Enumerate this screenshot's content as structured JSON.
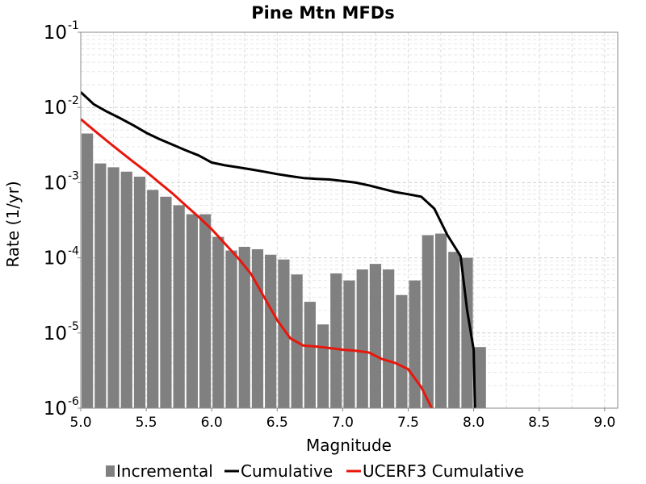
{
  "chart_data": {
    "type": "bar",
    "title": "Pine Mtn MFDs",
    "xlabel": "Magnitude",
    "ylabel": "Rate (1/yr)",
    "xlim": [
      5.0,
      9.1
    ],
    "ylim": [
      1e-06,
      0.1
    ],
    "yscale": "log",
    "grid": true,
    "legend_position": "bottom",
    "x_ticks": [
      "5.0",
      "5.5",
      "6.0",
      "6.5",
      "7.0",
      "7.5",
      "8.0",
      "8.5",
      "9.0"
    ],
    "y_ticks": [
      {
        "base": "10",
        "exp": "-6"
      },
      {
        "base": "10",
        "exp": "-5"
      },
      {
        "base": "10",
        "exp": "-4"
      },
      {
        "base": "10",
        "exp": "-3"
      },
      {
        "base": "10",
        "exp": "-2"
      },
      {
        "base": "10",
        "exp": "-1"
      }
    ],
    "series": [
      {
        "name": "Incremental",
        "kind": "bar",
        "color": "#808080",
        "bin_width": 0.1,
        "x": [
          5.05,
          5.15,
          5.25,
          5.35,
          5.45,
          5.55,
          5.65,
          5.75,
          5.85,
          5.95,
          6.05,
          6.15,
          6.25,
          6.35,
          6.45,
          6.55,
          6.65,
          6.75,
          6.85,
          6.95,
          7.05,
          7.15,
          7.25,
          7.35,
          7.45,
          7.55,
          7.65,
          7.75,
          7.85,
          7.95,
          8.05
        ],
        "values": [
          0.0045,
          0.0018,
          0.0016,
          0.0014,
          0.0012,
          0.0008,
          0.00065,
          0.0005,
          0.00038,
          0.00038,
          0.00019,
          0.000125,
          0.00014,
          0.00013,
          0.00011,
          9.5e-05,
          6e-05,
          2.6e-05,
          1.3e-05,
          6.2e-05,
          5e-05,
          7e-05,
          8.3e-05,
          7e-05,
          3.2e-05,
          5e-05,
          0.0002,
          0.00021,
          0.00012,
          0.0001,
          6.5e-06
        ]
      },
      {
        "name": "Cumulative",
        "kind": "line",
        "color": "#000000",
        "x": [
          5.0,
          5.1,
          5.2,
          5.3,
          5.4,
          5.5,
          5.6,
          5.7,
          5.8,
          5.9,
          6.0,
          6.1,
          6.2,
          6.3,
          6.4,
          6.5,
          6.6,
          6.7,
          6.8,
          6.9,
          7.0,
          7.1,
          7.2,
          7.3,
          7.4,
          7.5,
          7.6,
          7.7,
          7.8,
          7.9,
          7.95,
          8.0,
          8.01
        ],
        "values": [
          0.016,
          0.011,
          0.0088,
          0.0072,
          0.0058,
          0.0046,
          0.0038,
          0.0032,
          0.0027,
          0.0023,
          0.00185,
          0.0017,
          0.0016,
          0.0015,
          0.0014,
          0.0013,
          0.00122,
          0.00115,
          0.00112,
          0.0011,
          0.00105,
          0.001,
          0.00092,
          0.00083,
          0.00075,
          0.0007,
          0.00065,
          0.00045,
          0.0002,
          0.000105,
          2e-05,
          6e-06,
          1e-06
        ]
      },
      {
        "name": "UCERF3 Cumulative",
        "kind": "line",
        "color": "#e8170d",
        "x": [
          5.0,
          5.1,
          5.2,
          5.3,
          5.4,
          5.5,
          5.6,
          5.7,
          5.8,
          5.9,
          6.0,
          6.1,
          6.2,
          6.3,
          6.4,
          6.5,
          6.6,
          6.7,
          6.8,
          6.9,
          7.0,
          7.1,
          7.2,
          7.3,
          7.4,
          7.5,
          7.6,
          7.68
        ],
        "values": [
          0.007,
          0.005,
          0.0036,
          0.0026,
          0.0019,
          0.0014,
          0.001,
          0.00072,
          0.0005,
          0.00035,
          0.00024,
          0.000155,
          0.0001,
          6.1e-05,
          3e-05,
          1.48e-05,
          8.5e-06,
          6.8e-06,
          6.6e-06,
          6.3e-06,
          6e-06,
          5.8e-06,
          5.5e-06,
          4.5e-06,
          4e-06,
          3.3e-06,
          1.9e-06,
          1e-06
        ]
      }
    ]
  }
}
